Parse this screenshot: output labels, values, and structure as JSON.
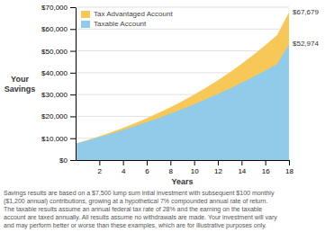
{
  "chart_data": {
    "type": "area",
    "stacked": false,
    "x_label": "Years",
    "y_label": "Your\nSavings",
    "x": [
      0,
      1,
      2,
      3,
      4,
      5,
      6,
      7,
      8,
      9,
      10,
      11,
      12,
      13,
      14,
      15,
      16,
      17,
      18
    ],
    "series": [
      {
        "name": "Tax Advantaged Account",
        "color": "#F7C858",
        "values": [
          7500,
          9135,
          10882,
          12749,
          14744,
          16877,
          19157,
          21594,
          24199,
          26983,
          29958,
          33136,
          36531,
          40157,
          44029,
          48163,
          52575,
          57283,
          67679
        ]
      },
      {
        "name": "Taxable Account",
        "color": "#90CCEA",
        "values": [
          7500,
          8964,
          10494,
          12094,
          13767,
          15518,
          17350,
          19267,
          21272,
          23370,
          25564,
          27858,
          30256,
          32762,
          35380,
          38115,
          40971,
          43952,
          52974
        ]
      }
    ],
    "xlim": [
      0,
      18
    ],
    "xticks": [
      2,
      4,
      6,
      8,
      10,
      12,
      14,
      16,
      18
    ],
    "ylim": [
      0,
      70000
    ],
    "yticks": [
      {
        "value": 0,
        "label": "$0"
      },
      {
        "value": 10000,
        "label": "$10,000"
      },
      {
        "value": 20000,
        "label": "$20,000"
      },
      {
        "value": 30000,
        "label": "$30,000"
      },
      {
        "value": 40000,
        "label": "$40,000"
      },
      {
        "value": 50000,
        "label": "$50,000"
      },
      {
        "value": 60000,
        "label": "$60,000"
      },
      {
        "value": 70000,
        "label": "$70,000"
      }
    ],
    "grid": true,
    "legend": "upper left",
    "annotations": [
      {
        "text": "$67,679",
        "x": 18,
        "y": 67679
      },
      {
        "text": "$52,974",
        "x": 18,
        "y": 52974
      }
    ],
    "footnote": [
      "Savings results are based on a $7,500 lump sum intial investment with subsequent $100 monthly",
      "($1,200 annual) contributions, growing at a hypothetical 7% compounded annual rate of return.",
      "The taxable results assume an annual federal tax rate of 28% and the earning on the taxable",
      "account are taxed annually. All results assume no withdrawals are made. Your investment will vary",
      "and may perform better or worse than these examples, which are for illustrative purposes only."
    ]
  }
}
